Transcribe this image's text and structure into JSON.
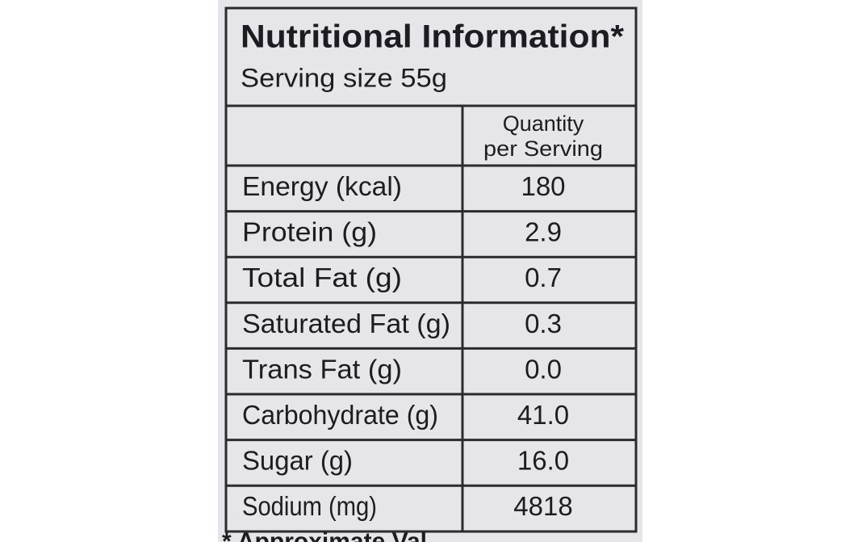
{
  "header": {
    "title": "Nutritional Information*",
    "serving_size": "Serving size 55g"
  },
  "table": {
    "column_header": [
      "Quantity",
      "per Serving"
    ],
    "rows": [
      [
        "Energy (kcal)",
        "180"
      ],
      [
        "Protein (g)",
        "2.9"
      ],
      [
        "Total Fat (g)",
        "0.7"
      ],
      [
        "Saturated Fat (g)",
        "0.3"
      ],
      [
        "Trans Fat (g)",
        "0.0"
      ],
      [
        "Carbohydrate (g)",
        "41.0"
      ],
      [
        "Sugar (g)",
        "16.0"
      ],
      [
        "Sodium (mg)",
        "4818"
      ]
    ]
  },
  "footnote": "* Approximate Val"
}
